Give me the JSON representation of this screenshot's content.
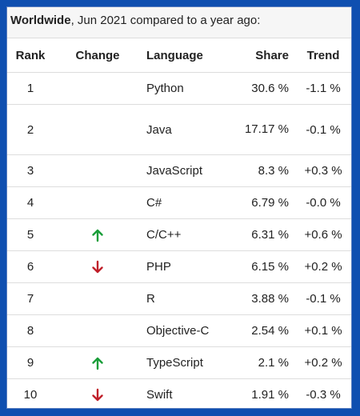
{
  "caption": {
    "bold": "Worldwide",
    "rest": ", Jun 2021 compared to a year ago:"
  },
  "headers": {
    "rank": "Rank",
    "change": "Change",
    "language": "Language",
    "share": "Share",
    "trend": "Trend"
  },
  "rows": [
    {
      "rank": "1",
      "change": "",
      "language": "Python",
      "share": "30.6 %",
      "trend": "-1.1 %"
    },
    {
      "rank": "2",
      "change": "",
      "language": "Java",
      "share": "17.17 %",
      "trend": "-0.1 %"
    },
    {
      "rank": "3",
      "change": "",
      "language": "JavaScript",
      "share": "8.3 %",
      "trend": "+0.3 %"
    },
    {
      "rank": "4",
      "change": "",
      "language": "C#",
      "share": "6.79 %",
      "trend": "-0.0 %"
    },
    {
      "rank": "5",
      "change": "up",
      "language": "C/C++",
      "share": "6.31 %",
      "trend": "+0.6 %"
    },
    {
      "rank": "6",
      "change": "down",
      "language": "PHP",
      "share": "6.15 %",
      "trend": "+0.2 %"
    },
    {
      "rank": "7",
      "change": "",
      "language": "R",
      "share": "3.88 %",
      "trend": "-0.1 %"
    },
    {
      "rank": "8",
      "change": "",
      "language": "Objective-C",
      "share": "2.54 %",
      "trend": "+0.1 %"
    },
    {
      "rank": "9",
      "change": "up",
      "language": "TypeScript",
      "share": "2.1 %",
      "trend": "+0.2 %"
    },
    {
      "rank": "10",
      "change": "down",
      "language": "Swift",
      "share": "1.91 %",
      "trend": "-0.3 %"
    }
  ],
  "colors": {
    "up": "#1a9e3a",
    "down": "#c0202a",
    "border": "#0f4fb0"
  },
  "icons": {
    "up": "arrow-up-icon",
    "down": "arrow-down-icon"
  }
}
